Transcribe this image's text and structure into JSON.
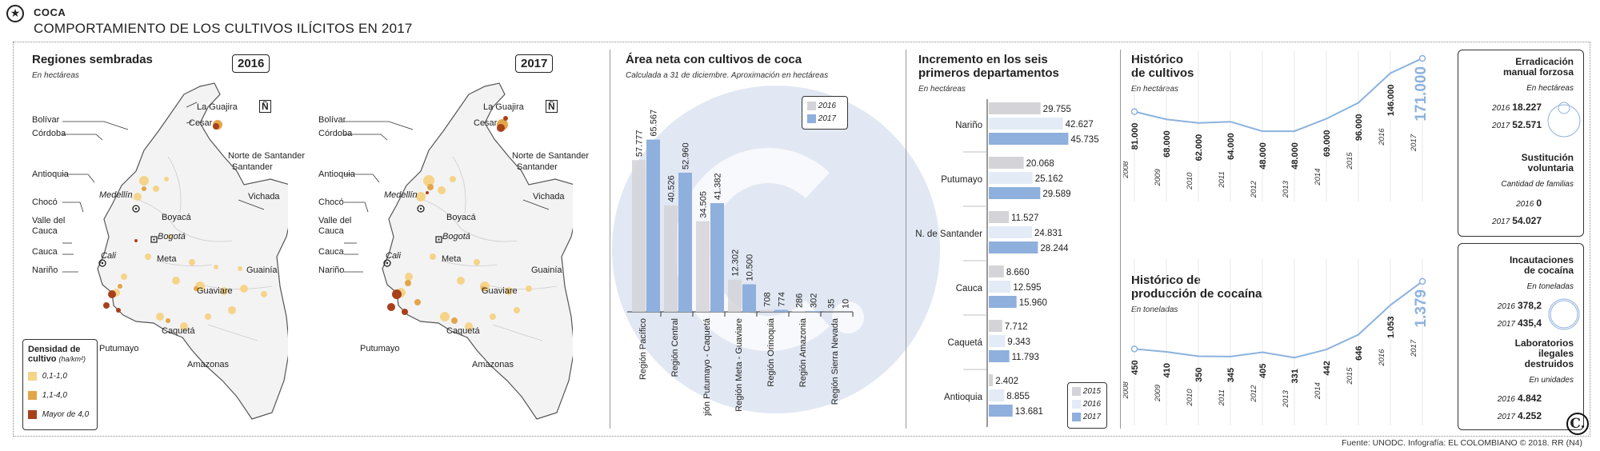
{
  "header": {
    "kicker": "COCA",
    "title": "COMPORTAMIENTO DE LOS CULTIVOS ILÍCITOS EN 2017",
    "logo_icon": "star-circle-icon"
  },
  "maps": {
    "title": "Regiones sembradas",
    "subtitle": "En hectáreas",
    "north": "Ñ",
    "years": [
      "2016",
      "2017"
    ],
    "labels": {
      "guajira": "La Guajira",
      "bolivar": "Bolívar",
      "cordoba": "Córdoba",
      "cesar": "Cesar",
      "norte_santander": "Norte de Santander",
      "santander": "Santander",
      "antioquia": "Antioquia",
      "medellin": "Medellín",
      "choco": "Chocó",
      "valle": "Valle del",
      "cauca_line2": "Cauca",
      "boyaca": "Boyacá",
      "bogota": "Bogotá",
      "vichada": "Vichada",
      "cauca": "Cauca",
      "cali": "Cali",
      "narino": "Nariño",
      "meta": "Meta",
      "guainia": "Guainía",
      "guaviare": "Guaviare",
      "caqueta": "Caquetá",
      "putumayo": "Putumayo",
      "amazonas": "Amazonas"
    },
    "legend": {
      "title_line1": "Densidad de",
      "title_line2": "cultivo",
      "unit": "(ha/km²)",
      "items": [
        {
          "label": "0,1-1,0",
          "color": "#f5d48a"
        },
        {
          "label": "1,1-4,0",
          "color": "#e3a54a"
        },
        {
          "label": "Mayor de 4,0",
          "color": "#a8401a"
        }
      ]
    }
  },
  "area": {
    "title": "Área neta con cultivos de coca",
    "subtitle": "Calculada a 31 de diciembre. Aproximación en hectáreas",
    "legend": [
      "2016",
      "2017"
    ]
  },
  "increment": {
    "title_line1": "Incremento en los seis",
    "title_line2": "primeros departamentos",
    "subtitle": "En hectáreas",
    "legend": [
      "2015",
      "2016",
      "2017"
    ]
  },
  "hist_cultivos": {
    "title_line1": "Histórico",
    "title_line2": "de cultivos",
    "subtitle": "En hectáreas"
  },
  "hist_cocaina": {
    "title_line1": "Histórico de",
    "title_line2": "producción de cocaína",
    "subtitle": "En toneladas"
  },
  "cards": {
    "erradicacion": {
      "title_line1": "Erradicación",
      "title_line2": "manual forzosa",
      "unit": "En hectáreas",
      "rows": [
        {
          "year": "2016",
          "value": "18.227"
        },
        {
          "year": "2017",
          "value": "52.571"
        }
      ]
    },
    "sustitucion": {
      "title_line1": "Sustitución",
      "title_line2": "voluntaria",
      "unit": "Cantidad de familias",
      "rows": [
        {
          "year": "2016",
          "value": "0"
        },
        {
          "year": "2017",
          "value": "54.027"
        }
      ]
    },
    "incautaciones": {
      "title_line1": "Incautaciones",
      "title_line2": "de cocaína",
      "unit": "En toneladas",
      "rows": [
        {
          "year": "2016",
          "value": "378,2"
        },
        {
          "year": "2017",
          "value": "435,4"
        }
      ]
    },
    "laboratorios": {
      "title_line1": "Laboratorios",
      "title_line2": "ilegales",
      "title_line3": "destruidos",
      "unit": "En unidades",
      "rows": [
        {
          "year": "2016",
          "value": "4.842"
        },
        {
          "year": "2017",
          "value": "4.252"
        }
      ]
    }
  },
  "footer": "Fuente: UNODC. Infografía: EL COLOMBIANO © 2018. RR (N4)",
  "brand": "C.",
  "colors": {
    "c2015": "#d4d4d8",
    "c2016": "#e3ebf7",
    "c2017": "#8fb0dd",
    "line": "#8cb2de",
    "watermark": "#c9d6ea"
  },
  "chart_data": [
    {
      "type": "bar",
      "title": "Área neta con cultivos de coca",
      "subtitle": "Calculada a 31 de diciembre. Aproximación en hectáreas",
      "categories": [
        "Región Pacífico",
        "Región Central",
        "Región Putumayo - Caquetá",
        "Región Meta - Guaviare",
        "Región Orinoquia",
        "Región Amazonia",
        "Región Sierra Nevada"
      ],
      "series": [
        {
          "name": "2016",
          "values": [
            57777,
            40526,
            34505,
            12302,
            708,
            286,
            35
          ],
          "labels": [
            "57.777",
            "40.526",
            "34.505",
            "12.302",
            "708",
            "286",
            "35"
          ]
        },
        {
          "name": "2017",
          "values": [
            65567,
            52960,
            41382,
            10500,
            774,
            302,
            10
          ],
          "labels": [
            "65.567",
            "52.960",
            "41.382",
            "10.500",
            "774",
            "302",
            "10"
          ]
        }
      ]
    },
    {
      "type": "bar",
      "title": "Incremento en los seis primeros departamentos",
      "subtitle": "En hectáreas",
      "orientation": "horizontal",
      "categories": [
        "Nariño",
        "Putumayo",
        "N. de Santander",
        "Cauca",
        "Caquetá",
        "Antioquia"
      ],
      "series": [
        {
          "name": "2015",
          "values": [
            29755,
            20068,
            11527,
            8660,
            7712,
            2402
          ],
          "labels": [
            "29.755",
            "20.068",
            "11.527",
            "8.660",
            "7.712",
            "2.402"
          ]
        },
        {
          "name": "2016",
          "values": [
            42627,
            25162,
            24831,
            12595,
            9343,
            8855
          ],
          "labels": [
            "42.627",
            "25.162",
            "24.831",
            "12.595",
            "9.343",
            "8.855"
          ]
        },
        {
          "name": "2017",
          "values": [
            45735,
            29589,
            28244,
            15960,
            11793,
            13681
          ],
          "labels": [
            "45.735",
            "29.589",
            "28.244",
            "15.960",
            "11.793",
            "13.681"
          ]
        }
      ]
    },
    {
      "type": "line",
      "title": "Histórico de cultivos",
      "subtitle": "En hectáreas",
      "x": [
        "2008",
        "2009",
        "2010",
        "2011",
        "2012",
        "2013",
        "2014",
        "2015",
        "2016",
        "2017"
      ],
      "values": [
        81000,
        68000,
        62000,
        64000,
        48000,
        48000,
        69000,
        96000,
        146000,
        171000
      ],
      "labels": [
        "81.000",
        "68.000",
        "62.000",
        "64.000",
        "48.000",
        "48.000",
        "69.000",
        "96.000",
        "146.000",
        "171.000"
      ]
    },
    {
      "type": "line",
      "title": "Histórico de producción de cocaína",
      "subtitle": "En toneladas",
      "x": [
        "2008",
        "2009",
        "2010",
        "2011",
        "2012",
        "2013",
        "2014",
        "2015",
        "2016",
        "2017"
      ],
      "values": [
        450,
        410,
        350,
        345,
        405,
        331,
        442,
        646,
        1053,
        1379
      ],
      "labels": [
        "450",
        "410",
        "350",
        "345",
        "405",
        "331",
        "442",
        "646",
        "1.053",
        "1.379"
      ]
    }
  ]
}
